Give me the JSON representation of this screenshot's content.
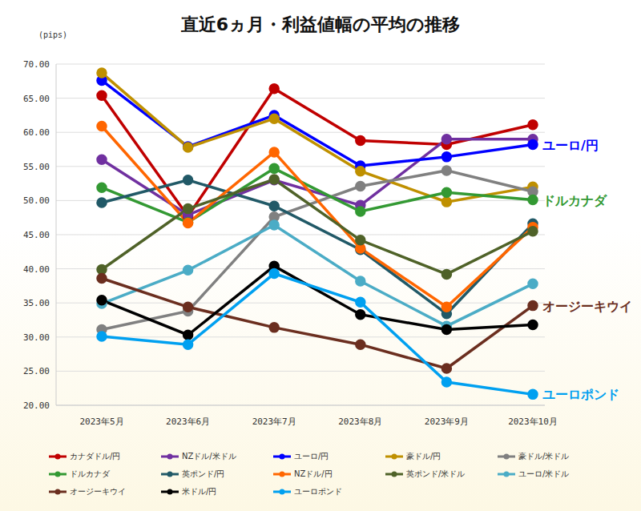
{
  "chart_data": {
    "type": "line",
    "title": "直近6ヵ月・利益値幅の平均の推移",
    "y_label": "(pips)",
    "categories": [
      "2023年5月",
      "2023年6月",
      "2023年7月",
      "2023年8月",
      "2023年9月",
      "2023年10月"
    ],
    "ylim": [
      20,
      70
    ],
    "yticks": [
      {
        "value": 20,
        "label": "20.00"
      },
      {
        "value": 25,
        "label": "25.00"
      },
      {
        "value": 30,
        "label": "30.00"
      },
      {
        "value": 35,
        "label": "35.00"
      },
      {
        "value": 40,
        "label": "40.00"
      },
      {
        "value": 45,
        "label": "45.00"
      },
      {
        "value": 50,
        "label": "50.00"
      },
      {
        "value": 55,
        "label": "55.00"
      },
      {
        "value": 60,
        "label": "60.00"
      },
      {
        "value": 65,
        "label": "65.00"
      },
      {
        "value": 70,
        "label": "70.00"
      }
    ],
    "grid": true,
    "legend": "bottom",
    "marker": "circle",
    "series": [
      {
        "name": "カナダドル/円",
        "color": "#c00000",
        "values": [
          65.4,
          47.7,
          66.4,
          58.8,
          58.2,
          61.1
        ]
      },
      {
        "name": "NZドル/米ドル",
        "color": "#7030a0",
        "values": [
          56.0,
          47.9,
          53.0,
          49.3,
          59.0,
          59.0
        ]
      },
      {
        "name": "ユーロ/円",
        "color": "#0000ff",
        "values": [
          67.6,
          57.9,
          62.5,
          55.1,
          56.4,
          58.2
        ]
      },
      {
        "name": "豪ドル/円",
        "color": "#bf9000",
        "values": [
          68.7,
          57.8,
          62.0,
          54.3,
          49.8,
          52.0
        ]
      },
      {
        "name": "豪ドル/米ドル",
        "color": "#808080",
        "values": [
          31.1,
          33.8,
          47.6,
          52.1,
          54.4,
          51.3
        ]
      },
      {
        "name": "ドルカナダ",
        "color": "#339933",
        "values": [
          51.9,
          46.8,
          54.7,
          48.4,
          51.2,
          50.1
        ]
      },
      {
        "name": "英ポンド/円",
        "color": "#215967",
        "values": [
          49.7,
          53.0,
          49.2,
          42.8,
          33.4,
          46.6
        ]
      },
      {
        "name": "NZドル/円",
        "color": "#ff6600",
        "values": [
          60.9,
          46.7,
          57.1,
          43.0,
          34.4,
          46.1
        ]
      },
      {
        "name": "英ポンド/米ドル",
        "color": "#4f6228",
        "values": [
          39.9,
          48.8,
          53.1,
          44.2,
          39.2,
          45.5
        ]
      },
      {
        "name": "ユーロ/米ドル",
        "color": "#4bacc6",
        "values": [
          34.9,
          39.8,
          46.4,
          38.2,
          31.6,
          37.8
        ]
      },
      {
        "name": "オージーキウイ",
        "color": "#6b2e1f",
        "values": [
          38.6,
          34.4,
          31.4,
          28.9,
          25.4,
          34.6
        ]
      },
      {
        "name": "米ドル/円",
        "color": "#000000",
        "values": [
          35.4,
          30.3,
          40.4,
          33.3,
          31.1,
          31.8
        ]
      },
      {
        "name": "ユーロポンド",
        "color": "#00a0f0",
        "values": [
          30.1,
          28.9,
          39.3,
          35.1,
          23.4,
          21.6
        ]
      }
    ],
    "annotations": [
      {
        "text": "ユーロ/円",
        "color": "#0000ff"
      },
      {
        "text": "ドルカナダ",
        "color": "#339933"
      },
      {
        "text": "オージーキウイ",
        "color": "#6b2e1f"
      },
      {
        "text": "ユーロポンド",
        "color": "#00a0f0"
      }
    ]
  }
}
